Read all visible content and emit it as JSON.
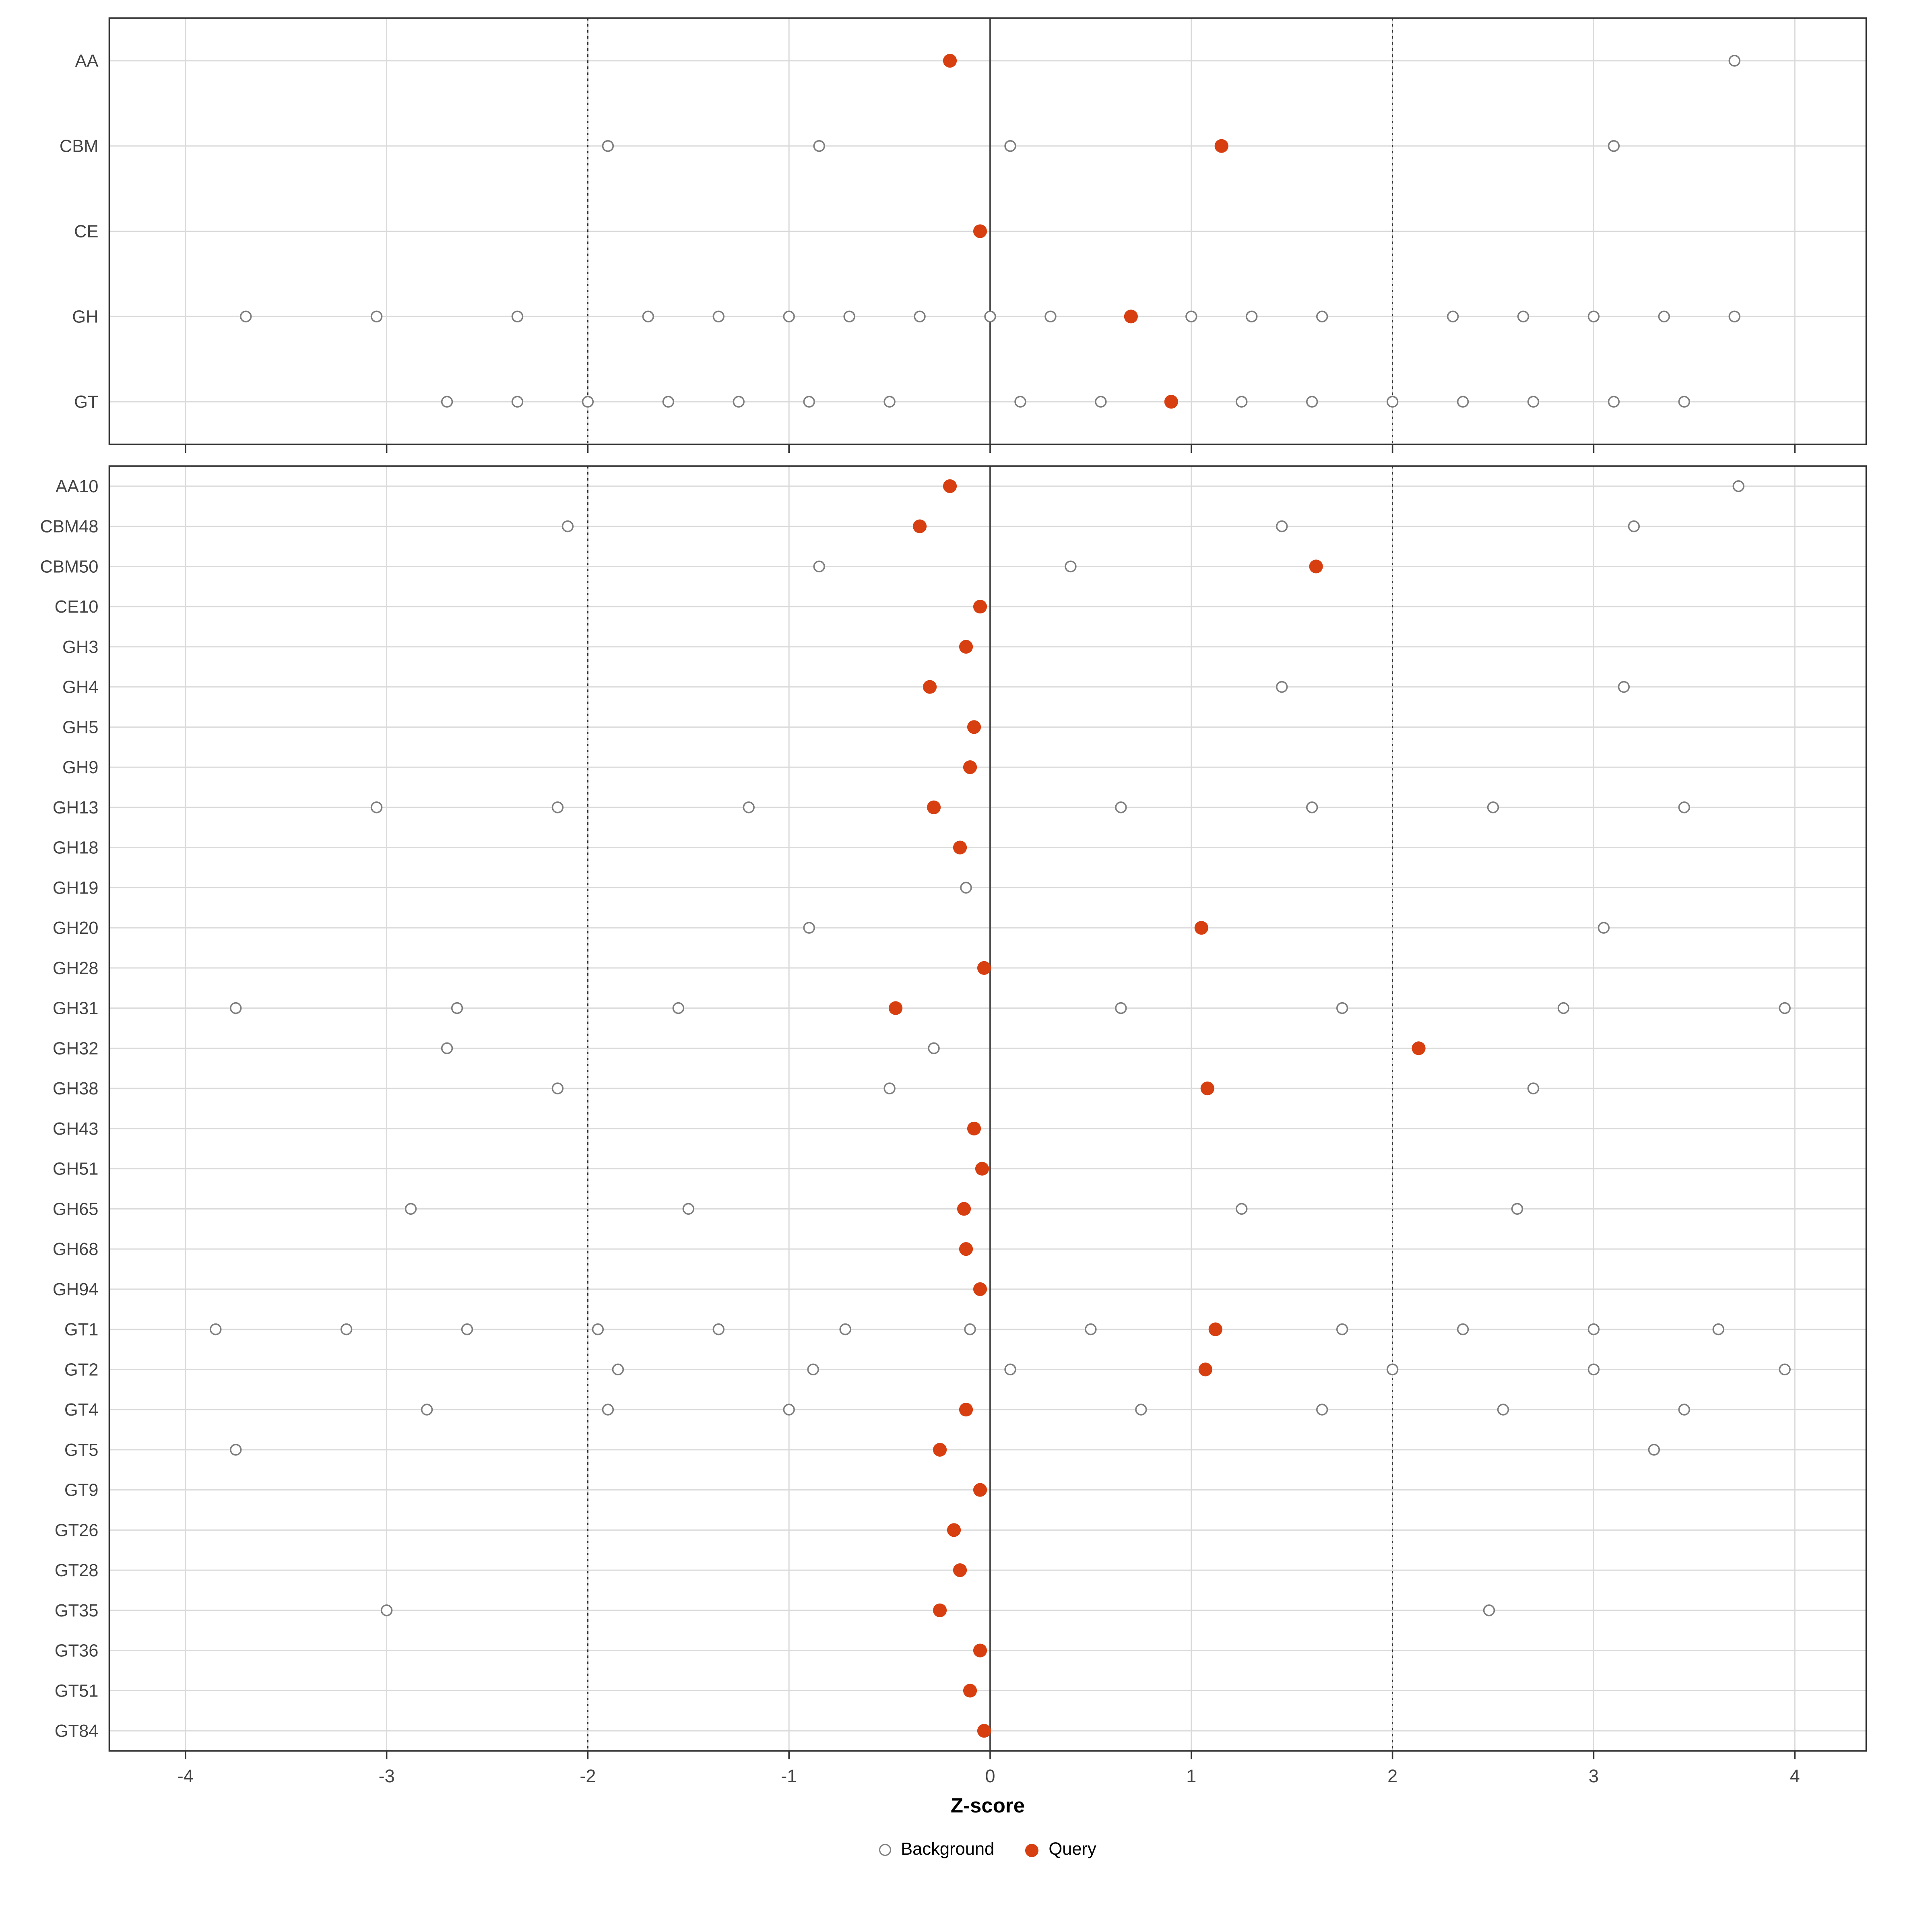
{
  "chart_data": {
    "type": "scatter",
    "title": "",
    "xlabel": "Z-score",
    "ylabel": "",
    "x_ticks": [
      -4,
      -3,
      -2,
      -1,
      0,
      1,
      2,
      3,
      4
    ],
    "xlim": [
      -4.37,
      4.37
    ],
    "grid": "on",
    "reference_lines": {
      "solid": [
        0
      ],
      "dotted": [
        -2,
        2
      ]
    },
    "colors": {
      "query": "#D73E10",
      "background_stroke": "#7E7E7E",
      "grid": "#DADADA",
      "axis_text": "#444444",
      "border": "#333333"
    },
    "legend": {
      "position": "bottom",
      "items": [
        {
          "label": "Background",
          "style": "open"
        },
        {
          "label": "Query",
          "style": "filled"
        }
      ]
    },
    "panels": [
      {
        "name": "families",
        "rows": [
          {
            "label": "AA",
            "query": [
              -0.2
            ],
            "background": [
              3.7
            ]
          },
          {
            "label": "CBM",
            "query": [
              1.15
            ],
            "background": [
              -1.9,
              -0.85,
              0.1,
              3.1
            ]
          },
          {
            "label": "CE",
            "query": [
              -0.05
            ],
            "background": []
          },
          {
            "label": "GH",
            "query": [
              0.7
            ],
            "background": [
              -3.7,
              -3.05,
              -2.35,
              -1.7,
              -1.35,
              -1.0,
              -0.7,
              -0.35,
              0.0,
              0.3,
              1.0,
              1.3,
              1.65,
              2.3,
              2.65,
              3.0,
              3.35,
              3.7
            ]
          },
          {
            "label": "GT",
            "query": [
              0.9
            ],
            "background": [
              -2.7,
              -2.35,
              -2.0,
              -1.6,
              -1.25,
              -0.9,
              -0.5,
              0.15,
              0.55,
              1.25,
              1.6,
              2.0,
              2.35,
              2.7,
              3.1,
              3.45
            ]
          }
        ]
      },
      {
        "name": "subfamilies",
        "rows": [
          {
            "label": "AA10",
            "query": [
              -0.2
            ],
            "background": [
              3.72
            ]
          },
          {
            "label": "CBM48",
            "query": [
              -0.35
            ],
            "background": [
              -2.1,
              1.45,
              3.2
            ]
          },
          {
            "label": "CBM50",
            "query": [
              1.62
            ],
            "background": [
              -0.85,
              0.4
            ]
          },
          {
            "label": "CE10",
            "query": [
              -0.05
            ],
            "background": []
          },
          {
            "label": "GH3",
            "query": [
              -0.12
            ],
            "background": []
          },
          {
            "label": "GH4",
            "query": [
              -0.3
            ],
            "background": [
              1.45,
              3.15
            ]
          },
          {
            "label": "GH5",
            "query": [
              -0.08
            ],
            "background": []
          },
          {
            "label": "GH9",
            "query": [
              -0.1
            ],
            "background": []
          },
          {
            "label": "GH13",
            "query": [
              -0.28
            ],
            "background": [
              -3.05,
              -2.15,
              -1.2,
              0.65,
              1.6,
              2.5,
              3.45
            ]
          },
          {
            "label": "GH18",
            "query": [
              -0.15
            ],
            "background": []
          },
          {
            "label": "GH19",
            "query": [],
            "background": [
              -0.12
            ]
          },
          {
            "label": "GH20",
            "query": [
              1.05
            ],
            "background": [
              -0.9,
              3.05
            ]
          },
          {
            "label": "GH28",
            "query": [
              -0.03
            ],
            "background": []
          },
          {
            "label": "GH31",
            "query": [
              -0.47
            ],
            "background": [
              -3.75,
              -2.65,
              -1.55,
              0.65,
              1.75,
              2.85,
              3.95
            ]
          },
          {
            "label": "GH32",
            "query": [
              2.13
            ],
            "background": [
              -2.7,
              -0.28
            ]
          },
          {
            "label": "GH38",
            "query": [
              1.08
            ],
            "background": [
              -2.15,
              -0.5,
              2.7
            ]
          },
          {
            "label": "GH43",
            "query": [
              -0.08
            ],
            "background": []
          },
          {
            "label": "GH51",
            "query": [
              -0.04
            ],
            "background": []
          },
          {
            "label": "GH65",
            "query": [
              -0.13
            ],
            "background": [
              -2.88,
              -1.5,
              1.25,
              2.62
            ]
          },
          {
            "label": "GH68",
            "query": [
              -0.12
            ],
            "background": []
          },
          {
            "label": "GH94",
            "query": [
              -0.05
            ],
            "background": []
          },
          {
            "label": "GT1",
            "query": [
              1.12
            ],
            "background": [
              -3.85,
              -3.2,
              -2.6,
              -1.95,
              -1.35,
              -0.72,
              -0.1,
              0.5,
              1.75,
              2.35,
              3.0,
              3.62
            ]
          },
          {
            "label": "GT2",
            "query": [
              1.07
            ],
            "background": [
              -1.85,
              -0.88,
              0.1,
              2.0,
              3.0,
              3.95
            ]
          },
          {
            "label": "GT4",
            "query": [
              -0.12
            ],
            "background": [
              -2.8,
              -1.9,
              -1.0,
              0.75,
              1.65,
              2.55,
              3.45
            ]
          },
          {
            "label": "GT5",
            "query": [
              -0.25
            ],
            "background": [
              -3.75,
              3.3
            ]
          },
          {
            "label": "GT9",
            "query": [
              -0.05
            ],
            "background": []
          },
          {
            "label": "GT26",
            "query": [
              -0.18
            ],
            "background": []
          },
          {
            "label": "GT28",
            "query": [
              -0.15
            ],
            "background": []
          },
          {
            "label": "GT35",
            "query": [
              -0.25
            ],
            "background": [
              -3.0,
              2.48
            ]
          },
          {
            "label": "GT36",
            "query": [
              -0.05
            ],
            "background": []
          },
          {
            "label": "GT51",
            "query": [
              -0.1
            ],
            "background": []
          },
          {
            "label": "GT84",
            "query": [
              -0.03
            ],
            "background": []
          }
        ]
      }
    ]
  }
}
